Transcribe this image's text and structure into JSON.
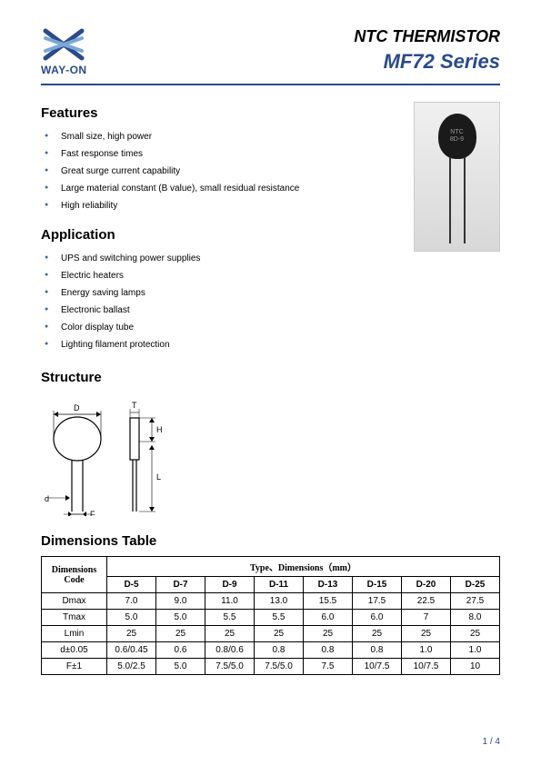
{
  "header": {
    "logo_text": "WAY-ON",
    "title_line1": "NTC THERMISTOR",
    "title_line2": "MF72 Series",
    "accent_color": "#2a4a8a"
  },
  "features": {
    "heading": "Features",
    "items": [
      "Small size, high power",
      "Fast response times",
      "Great surge current capability",
      "Large material constant (B value), small residual resistance",
      "High reliability"
    ]
  },
  "application": {
    "heading": "Application",
    "items": [
      "UPS and switching power supplies",
      "Electric heaters",
      "Energy saving lamps",
      "Electronic ballast",
      "Color display tube",
      "Lighting filament protection"
    ]
  },
  "structure": {
    "heading": "Structure",
    "labels": {
      "D": "D",
      "T": "T",
      "H": "H",
      "L": "L",
      "d": "d",
      "F": "F"
    }
  },
  "product_image": {
    "marking_line1": "NTC",
    "marking_line2": "8D-9"
  },
  "dimensions": {
    "heading": "Dimensions Table",
    "row_header": "Dimensions Code",
    "group_header": "Type、Dimensions（mm）",
    "columns": [
      "D-5",
      "D-7",
      "D-9",
      "D-11",
      "D-13",
      "D-15",
      "D-20",
      "D-25"
    ],
    "rows": [
      {
        "label": "Dmax",
        "values": [
          "7.0",
          "9.0",
          "11.0",
          "13.0",
          "15.5",
          "17.5",
          "22.5",
          "27.5"
        ]
      },
      {
        "label": "Tmax",
        "values": [
          "5.0",
          "5.0",
          "5.5",
          "5.5",
          "6.0",
          "6.0",
          "7",
          "8.0"
        ]
      },
      {
        "label": "Lmin",
        "values": [
          "25",
          "25",
          "25",
          "25",
          "25",
          "25",
          "25",
          "25"
        ]
      },
      {
        "label": "d±0.05",
        "values": [
          "0.6/0.45",
          "0.6",
          "0.8/0.6",
          "0.8",
          "0.8",
          "0.8",
          "1.0",
          "1.0"
        ]
      },
      {
        "label": "F±1",
        "values": [
          "5.0/2.5",
          "5.0",
          "7.5/5.0",
          "7.5/5.0",
          "7.5",
          "10/7.5",
          "10/7.5",
          "10"
        ]
      }
    ],
    "col_widths": [
      "72px",
      "54px",
      "54px",
      "54px",
      "54px",
      "54px",
      "54px",
      "54px",
      "54px"
    ]
  },
  "footer": {
    "page": "1 / 4"
  }
}
